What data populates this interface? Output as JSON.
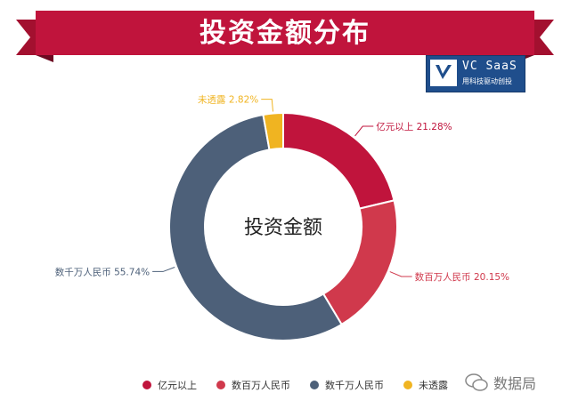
{
  "header": {
    "title": "投资金额分布"
  },
  "logo": {
    "name": "VC SaaS",
    "tagline": "用科技驱动创投"
  },
  "watermark": {
    "text": "数据局"
  },
  "colors": {
    "banner": "#c0143c",
    "banner_fold": "#8e0f2c"
  },
  "chart_data": {
    "type": "pie",
    "center_label": "投资金额",
    "categories": [
      "亿元以上",
      "数百万人民币",
      "数千万人民币",
      "未透露"
    ],
    "values": [
      21.28,
      20.15,
      55.74,
      2.82
    ],
    "value_labels": [
      "21.28%",
      "20.15%",
      "55.74%",
      "2.82%"
    ],
    "colors": [
      "#c0143c",
      "#d0394c",
      "#4d6079",
      "#f0b421"
    ],
    "legend_position": "bottom"
  }
}
